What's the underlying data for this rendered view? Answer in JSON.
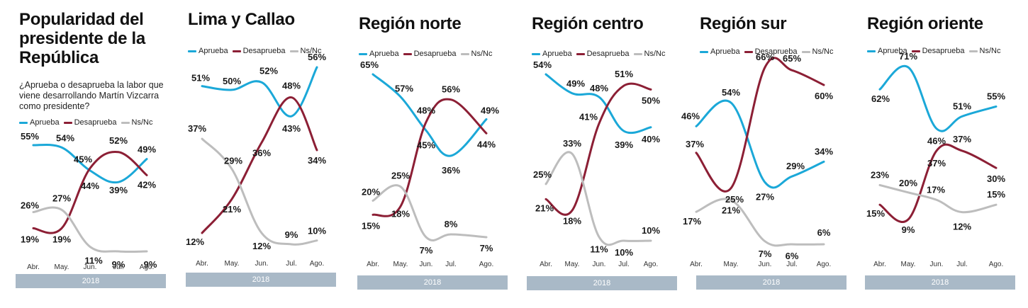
{
  "series_names": [
    "Aprueba",
    "Desaprueba",
    "Ns/Nc"
  ],
  "colors": {
    "aprueba": "#1ba8d8",
    "desaprueba": "#8c1f35",
    "nsnc": "#bdbdbd"
  },
  "question": "¿Aprueba o desaprueba la labor que viene desarrollando Martín Vizcarra como presidente?",
  "year": "2018",
  "chart_data": [
    {
      "type": "line",
      "title": "Popularidad del presidente de la República",
      "categories": [
        "Abr.",
        "May.",
        "Jun.",
        "Jul.",
        "Ago."
      ],
      "series": [
        {
          "name": "Aprueba",
          "values": [
            55,
            54,
            44,
            39,
            49
          ],
          "labels": [
            "55%",
            "54%",
            "44%",
            "39%",
            "49%"
          ]
        },
        {
          "name": "Desaprueba",
          "values": [
            19,
            19,
            45,
            52,
            42
          ],
          "labels": [
            "19%",
            "19%",
            "45%",
            "52%",
            "42%"
          ]
        },
        {
          "name": "Ns/Nc",
          "values": [
            26,
            27,
            11,
            9,
            9
          ],
          "labels": [
            "26%",
            "27%",
            "11%",
            "9%",
            "9%"
          ]
        }
      ],
      "ylim": [
        0,
        75
      ]
    },
    {
      "type": "line",
      "title": "Lima y Callao",
      "categories": [
        "Abr.",
        "May.",
        "Jun.",
        "Jul.",
        "Ago."
      ],
      "series": [
        {
          "name": "Aprueba",
          "values": [
            51,
            50,
            52,
            43,
            56
          ],
          "labels": [
            "51%",
            "50%",
            "52%",
            "43%",
            "56%"
          ]
        },
        {
          "name": "Desaprueba",
          "values": [
            12,
            21,
            36,
            48,
            34
          ],
          "labels": [
            "12%",
            "21%",
            "36%",
            "48%",
            "34%"
          ]
        },
        {
          "name": "Ns/Nc",
          "values": [
            37,
            29,
            12,
            9,
            10
          ],
          "labels": [
            "37%",
            "29%",
            "12%",
            "9%",
            "10%"
          ]
        }
      ],
      "ylim": [
        0,
        75
      ]
    },
    {
      "type": "line",
      "title": "Región norte",
      "categories": [
        "Abr.",
        "May.",
        "Jun.",
        "Jul.",
        "Ago."
      ],
      "series": [
        {
          "name": "Aprueba",
          "values": [
            65,
            57,
            45,
            36,
            49
          ],
          "labels": [
            "65%",
            "57%",
            "45%",
            "36%",
            "49%"
          ]
        },
        {
          "name": "Desaprueba",
          "values": [
            15,
            18,
            48,
            56,
            44
          ],
          "labels": [
            "15%",
            "18%",
            "48%",
            "56%",
            "44%"
          ]
        },
        {
          "name": "Ns/Nc",
          "values": [
            20,
            25,
            7,
            8,
            7
          ],
          "labels": [
            "20%",
            "25%",
            "7%",
            "8%",
            "7%"
          ]
        }
      ],
      "ylim": [
        0,
        75
      ]
    },
    {
      "type": "line",
      "title": "Región centro",
      "categories": [
        "Abr.",
        "May.",
        "Jun.",
        "Jul.",
        "Ago."
      ],
      "series": [
        {
          "name": "Aprueba",
          "values": [
            54,
            49,
            48,
            39,
            40
          ],
          "labels": [
            "54%",
            "49%",
            "48%",
            "39%",
            "40%"
          ]
        },
        {
          "name": "Desaprueba",
          "values": [
            21,
            18,
            41,
            51,
            50
          ],
          "labels": [
            "21%",
            "18%",
            "41%",
            "51%",
            "50%"
          ]
        },
        {
          "name": "Ns/Nc",
          "values": [
            25,
            33,
            11,
            10,
            10
          ],
          "labels": [
            "25%",
            "33%",
            "11%",
            "10%",
            "10%"
          ]
        }
      ],
      "ylim": [
        0,
        75
      ]
    },
    {
      "type": "line",
      "title": "Región sur",
      "categories": [
        "Abr.",
        "May.",
        "Jun.",
        "Jul.",
        "Ago."
      ],
      "series": [
        {
          "name": "Aprueba",
          "values": [
            46,
            54,
            27,
            29,
            34
          ],
          "labels": [
            "46%",
            "54%",
            "27%",
            "29%",
            "34%"
          ]
        },
        {
          "name": "Desaprueba",
          "values": [
            37,
            25,
            66,
            65,
            60
          ],
          "labels": [
            "37%",
            "25%",
            "66%",
            "65%",
            "60%"
          ]
        },
        {
          "name": "Ns/Nc",
          "values": [
            17,
            21,
            7,
            6,
            6
          ],
          "labels": [
            "17%",
            "21%",
            "7%",
            "6%",
            "6%"
          ]
        }
      ],
      "ylim": [
        0,
        75
      ]
    },
    {
      "type": "line",
      "title": "Región oriente",
      "categories": [
        "Abr.",
        "May.",
        "Jun.",
        "Jul.",
        "Ago."
      ],
      "series": [
        {
          "name": "Aprueba",
          "values": [
            62,
            71,
            46,
            51,
            55
          ],
          "labels": [
            "62%",
            "71%",
            "46%",
            "51%",
            "55%"
          ]
        },
        {
          "name": "Desaprueba",
          "values": [
            15,
            9,
            37,
            37,
            30
          ],
          "labels": [
            "15%",
            "9%",
            "37%",
            "37%",
            "30%"
          ]
        },
        {
          "name": "Ns/Nc",
          "values": [
            23,
            20,
            17,
            12,
            15
          ],
          "labels": [
            "23%",
            "20%",
            "17%",
            "12%",
            "15%"
          ]
        }
      ],
      "ylim": [
        0,
        75
      ]
    }
  ]
}
